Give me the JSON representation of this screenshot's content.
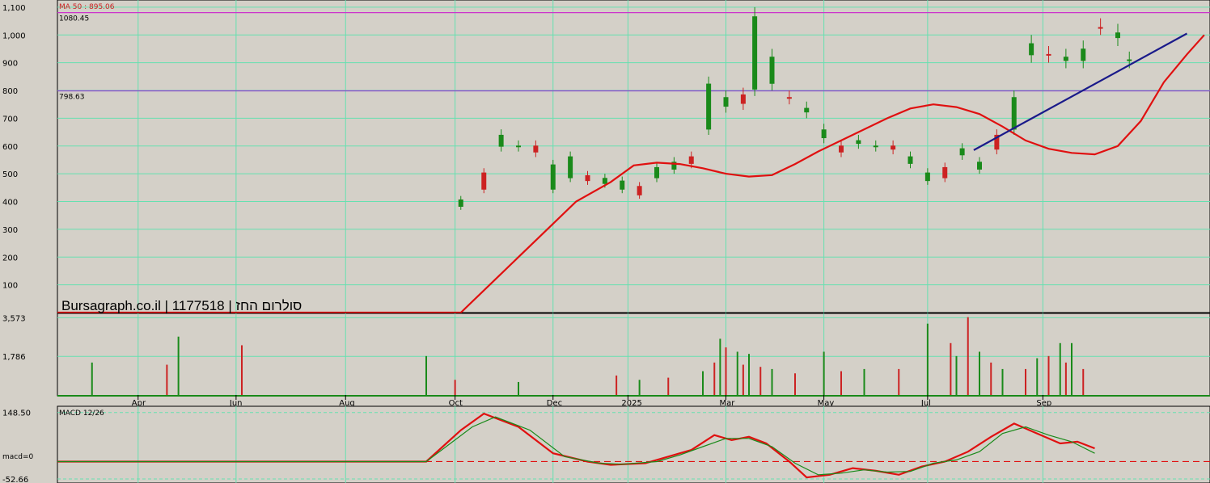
{
  "watermark": "Bursagraph.co.il | 1177518 | סולרום החז",
  "chart_data": [
    {
      "type": "line",
      "name": "price",
      "ma_label": "MA 50 : 895.06",
      "ylim": [
        0,
        1120
      ],
      "y_ticks": [
        100,
        200,
        300,
        400,
        500,
        600,
        700,
        800,
        900,
        1000,
        1100
      ],
      "y_tick_labels": [
        "100",
        "200",
        "300",
        "400",
        "500",
        "600",
        "700",
        "800",
        "900",
        "1,000",
        "1,100"
      ],
      "hlines": [
        {
          "value": 1080.45,
          "label": "1080.45",
          "color": "#cc33cc"
        },
        {
          "value": 798.63,
          "label": "798.63",
          "color": "#8844cc"
        }
      ],
      "series": [
        {
          "name": "MA 50",
          "color": "#e01010",
          "points": [
            [
              0,
              0
            ],
            [
              0.35,
              0
            ],
            [
              0.38,
              120
            ],
            [
              0.42,
              280
            ],
            [
              0.45,
              400
            ],
            [
              0.48,
              470
            ],
            [
              0.5,
              530
            ],
            [
              0.52,
              540
            ],
            [
              0.54,
              535
            ],
            [
              0.56,
              520
            ],
            [
              0.58,
              500
            ],
            [
              0.6,
              490
            ],
            [
              0.62,
              495
            ],
            [
              0.64,
              535
            ],
            [
              0.66,
              580
            ],
            [
              0.68,
              620
            ],
            [
              0.7,
              660
            ],
            [
              0.72,
              700
            ],
            [
              0.74,
              735
            ],
            [
              0.76,
              750
            ],
            [
              0.78,
              740
            ],
            [
              0.8,
              715
            ],
            [
              0.82,
              670
            ],
            [
              0.84,
              620
            ],
            [
              0.86,
              590
            ],
            [
              0.88,
              575
            ],
            [
              0.9,
              570
            ],
            [
              0.92,
              600
            ],
            [
              0.94,
              690
            ],
            [
              0.96,
              830
            ],
            [
              0.98,
              930
            ],
            [
              0.995,
              1000
            ]
          ]
        },
        {
          "name": "trendline",
          "color": "#1a1a8a",
          "points": [
            [
              0.795,
              585
            ],
            [
              0.98,
              1005
            ]
          ]
        }
      ],
      "candles": [
        [
          0.35,
          370,
          420
        ],
        [
          0.37,
          430,
          520
        ],
        [
          0.385,
          580,
          660
        ],
        [
          0.4,
          580,
          620
        ],
        [
          0.415,
          560,
          620
        ],
        [
          0.43,
          430,
          550
        ],
        [
          0.445,
          470,
          580
        ],
        [
          0.46,
          460,
          510
        ],
        [
          0.475,
          450,
          500
        ],
        [
          0.49,
          430,
          490
        ],
        [
          0.505,
          410,
          470
        ],
        [
          0.52,
          470,
          540
        ],
        [
          0.535,
          500,
          560
        ],
        [
          0.55,
          520,
          580
        ],
        [
          0.565,
          640,
          850
        ],
        [
          0.58,
          720,
          800
        ],
        [
          0.595,
          730,
          810
        ],
        [
          0.605,
          780,
          1100
        ],
        [
          0.62,
          800,
          950
        ],
        [
          0.635,
          750,
          800
        ],
        [
          0.65,
          700,
          760
        ],
        [
          0.665,
          610,
          680
        ],
        [
          0.68,
          560,
          620
        ],
        [
          0.695,
          590,
          640
        ],
        [
          0.71,
          580,
          620
        ],
        [
          0.725,
          570,
          620
        ],
        [
          0.74,
          520,
          580
        ],
        [
          0.755,
          460,
          520
        ],
        [
          0.77,
          470,
          540
        ],
        [
          0.785,
          550,
          610
        ],
        [
          0.8,
          500,
          560
        ],
        [
          0.815,
          570,
          660
        ],
        [
          0.83,
          640,
          800
        ],
        [
          0.845,
          900,
          1000
        ],
        [
          0.86,
          900,
          960
        ],
        [
          0.875,
          880,
          950
        ],
        [
          0.89,
          880,
          980
        ],
        [
          0.905,
          1000,
          1060
        ],
        [
          0.92,
          960,
          1040
        ],
        [
          0.93,
          880,
          940
        ]
      ]
    },
    {
      "type": "bar",
      "name": "volume",
      "y_tick_labels": [
        "3,573",
        "1,786"
      ],
      "y_ticks": [
        3573,
        1786
      ],
      "ylim": [
        0,
        3700
      ],
      "x_tick_labels": [
        "Apr",
        "Jun",
        "Aug",
        "Oct",
        "Dec",
        "2025",
        "Mar",
        "May",
        "Jul",
        "Sep"
      ],
      "x_ticks": [
        0.07,
        0.155,
        0.25,
        0.345,
        0.43,
        0.495,
        0.58,
        0.665,
        0.755,
        0.855
      ],
      "bars": [
        [
          0.03,
          1500
        ],
        [
          0.095,
          1400
        ],
        [
          0.105,
          2700
        ],
        [
          0.16,
          2300
        ],
        [
          0.32,
          1800
        ],
        [
          0.345,
          700
        ],
        [
          0.4,
          600
        ],
        [
          0.485,
          900
        ],
        [
          0.505,
          700
        ],
        [
          0.53,
          800
        ],
        [
          0.56,
          1100
        ],
        [
          0.57,
          1500
        ],
        [
          0.575,
          2600
        ],
        [
          0.58,
          2200
        ],
        [
          0.59,
          2000
        ],
        [
          0.595,
          1400
        ],
        [
          0.6,
          1900
        ],
        [
          0.61,
          1300
        ],
        [
          0.62,
          1200
        ],
        [
          0.64,
          1000
        ],
        [
          0.665,
          2000
        ],
        [
          0.68,
          1100
        ],
        [
          0.7,
          1200
        ],
        [
          0.73,
          1200
        ],
        [
          0.755,
          3300
        ],
        [
          0.775,
          2400
        ],
        [
          0.78,
          1800
        ],
        [
          0.79,
          3600
        ],
        [
          0.8,
          2000
        ],
        [
          0.81,
          1500
        ],
        [
          0.82,
          1200
        ],
        [
          0.84,
          1200
        ],
        [
          0.85,
          1700
        ],
        [
          0.86,
          1800
        ],
        [
          0.87,
          2400
        ],
        [
          0.875,
          1500
        ],
        [
          0.88,
          2400
        ],
        [
          0.89,
          1200
        ]
      ]
    },
    {
      "type": "line",
      "name": "MACD 12/26",
      "title": "MACD 12/26",
      "zero_label": "macd=0",
      "y_tick_labels": [
        "148.50",
        "-52.66"
      ],
      "y_ticks": [
        148.5,
        -52.66
      ],
      "ylim": [
        -60,
        160
      ],
      "x_ticks": [
        0.07,
        0.155,
        0.25,
        0.345,
        0.43,
        0.495,
        0.58,
        0.665,
        0.755,
        0.855
      ],
      "series": [
        {
          "name": "MACD",
          "color": "#e01010",
          "points": [
            [
              0,
              0
            ],
            [
              0.32,
              0
            ],
            [
              0.35,
              95
            ],
            [
              0.37,
              145
            ],
            [
              0.4,
              105
            ],
            [
              0.43,
              25
            ],
            [
              0.46,
              0
            ],
            [
              0.48,
              -10
            ],
            [
              0.51,
              -5
            ],
            [
              0.53,
              15
            ],
            [
              0.55,
              35
            ],
            [
              0.57,
              80
            ],
            [
              0.585,
              65
            ],
            [
              0.6,
              75
            ],
            [
              0.615,
              55
            ],
            [
              0.635,
              0
            ],
            [
              0.65,
              -48
            ],
            [
              0.67,
              -40
            ],
            [
              0.69,
              -20
            ],
            [
              0.71,
              -28
            ],
            [
              0.73,
              -40
            ],
            [
              0.75,
              -15
            ],
            [
              0.77,
              0
            ],
            [
              0.79,
              30
            ],
            [
              0.81,
              75
            ],
            [
              0.83,
              115
            ],
            [
              0.85,
              85
            ],
            [
              0.87,
              55
            ],
            [
              0.885,
              60
            ],
            [
              0.9,
              40
            ]
          ]
        },
        {
          "name": "Signal",
          "color": "#1a8a1a",
          "points": [
            [
              0,
              0
            ],
            [
              0.32,
              0
            ],
            [
              0.36,
              105
            ],
            [
              0.38,
              135
            ],
            [
              0.41,
              95
            ],
            [
              0.44,
              15
            ],
            [
              0.47,
              -5
            ],
            [
              0.49,
              -8
            ],
            [
              0.52,
              0
            ],
            [
              0.54,
              20
            ],
            [
              0.56,
              45
            ],
            [
              0.58,
              70
            ],
            [
              0.6,
              70
            ],
            [
              0.62,
              45
            ],
            [
              0.64,
              -5
            ],
            [
              0.66,
              -40
            ],
            [
              0.68,
              -35
            ],
            [
              0.7,
              -25
            ],
            [
              0.72,
              -32
            ],
            [
              0.74,
              -30
            ],
            [
              0.76,
              -5
            ],
            [
              0.78,
              5
            ],
            [
              0.8,
              30
            ],
            [
              0.82,
              85
            ],
            [
              0.84,
              105
            ],
            [
              0.86,
              80
            ],
            [
              0.88,
              60
            ],
            [
              0.9,
              25
            ]
          ]
        }
      ]
    }
  ]
}
